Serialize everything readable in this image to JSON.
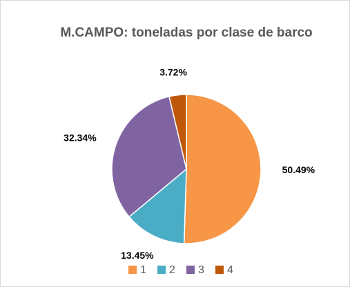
{
  "chart_data": {
    "type": "pie",
    "title": "M.CAMPO: toneladas por clase de barco",
    "categories": [
      "1",
      "2",
      "3",
      "4"
    ],
    "values": [
      50.49,
      13.45,
      32.34,
      3.72
    ],
    "value_labels": [
      "50.49%",
      "13.45%",
      "32.34%",
      "3.72%"
    ],
    "colors": [
      "#f79646",
      "#4bacc6",
      "#8064a2",
      "#c0580b"
    ],
    "legend": "bottom"
  }
}
